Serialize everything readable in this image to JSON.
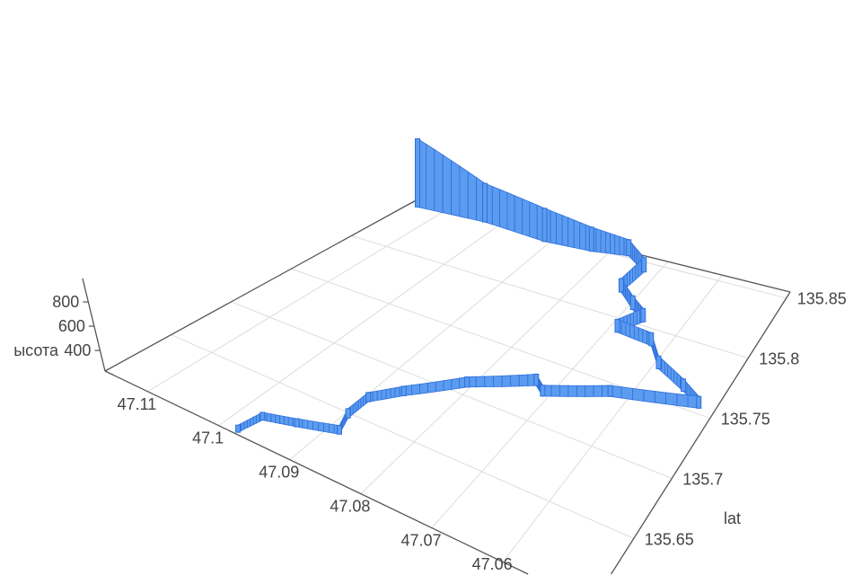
{
  "chart_data": {
    "type": "scatter3d",
    "title": "",
    "axes": {
      "x": {
        "label": "",
        "range": [
          47.0475,
          47.116
        ],
        "ticks": [
          47.06,
          47.07,
          47.08,
          47.09,
          47.1,
          47.11
        ],
        "tick_labels": [
          "47.06",
          "47.07",
          "47.08",
          "47.09",
          "47.1",
          "47.11"
        ]
      },
      "y": {
        "label": "lat",
        "range": [
          135.595,
          135.855
        ],
        "ticks": [
          135.65,
          135.7,
          135.75,
          135.8,
          135.85
        ],
        "tick_labels": [
          "135.65",
          "135.7",
          "135.75",
          "135.8",
          "135.85"
        ]
      },
      "z": {
        "label": "ысота",
        "range": [
          230,
          1000
        ],
        "ticks": [
          400,
          600,
          800
        ],
        "tick_labels": [
          "400",
          "600",
          "800"
        ]
      }
    },
    "grid": true,
    "colors": {
      "fill": "#5b9cf0",
      "stroke": "#2f6fdc",
      "grid": "#dddddd",
      "axis": "#555555"
    },
    "series": [
      {
        "x": [
          47.1149,
          47.103,
          47.0913,
          47.0831,
          47.077,
          47.0725,
          47.0731,
          47.0693,
          47.0664,
          47.0687,
          47.0626,
          47.0592,
          47.0537,
          47.0501,
          47.0627,
          47.071,
          47.0729,
          47.0807,
          47.0865,
          47.0894,
          47.0895,
          47.0885,
          47.0933,
          47.0972,
          47.0979
        ],
        "y": [
          135.85,
          135.852,
          135.848,
          135.85,
          135.854,
          135.844,
          135.823,
          135.812,
          135.805,
          135.791,
          135.789,
          135.774,
          135.764,
          135.756,
          135.742,
          135.724,
          135.73,
          135.709,
          135.683,
          135.667,
          135.648,
          135.633,
          135.624,
          135.617,
          135.599
        ],
        "z": [
          970,
          600,
          520,
          420,
          340,
          320,
          310,
          310,
          305,
          300,
          300,
          295,
          290,
          285,
          280,
          280,
          285,
          275,
          270,
          268,
          268,
          262,
          258,
          255,
          250
        ]
      }
    ]
  }
}
